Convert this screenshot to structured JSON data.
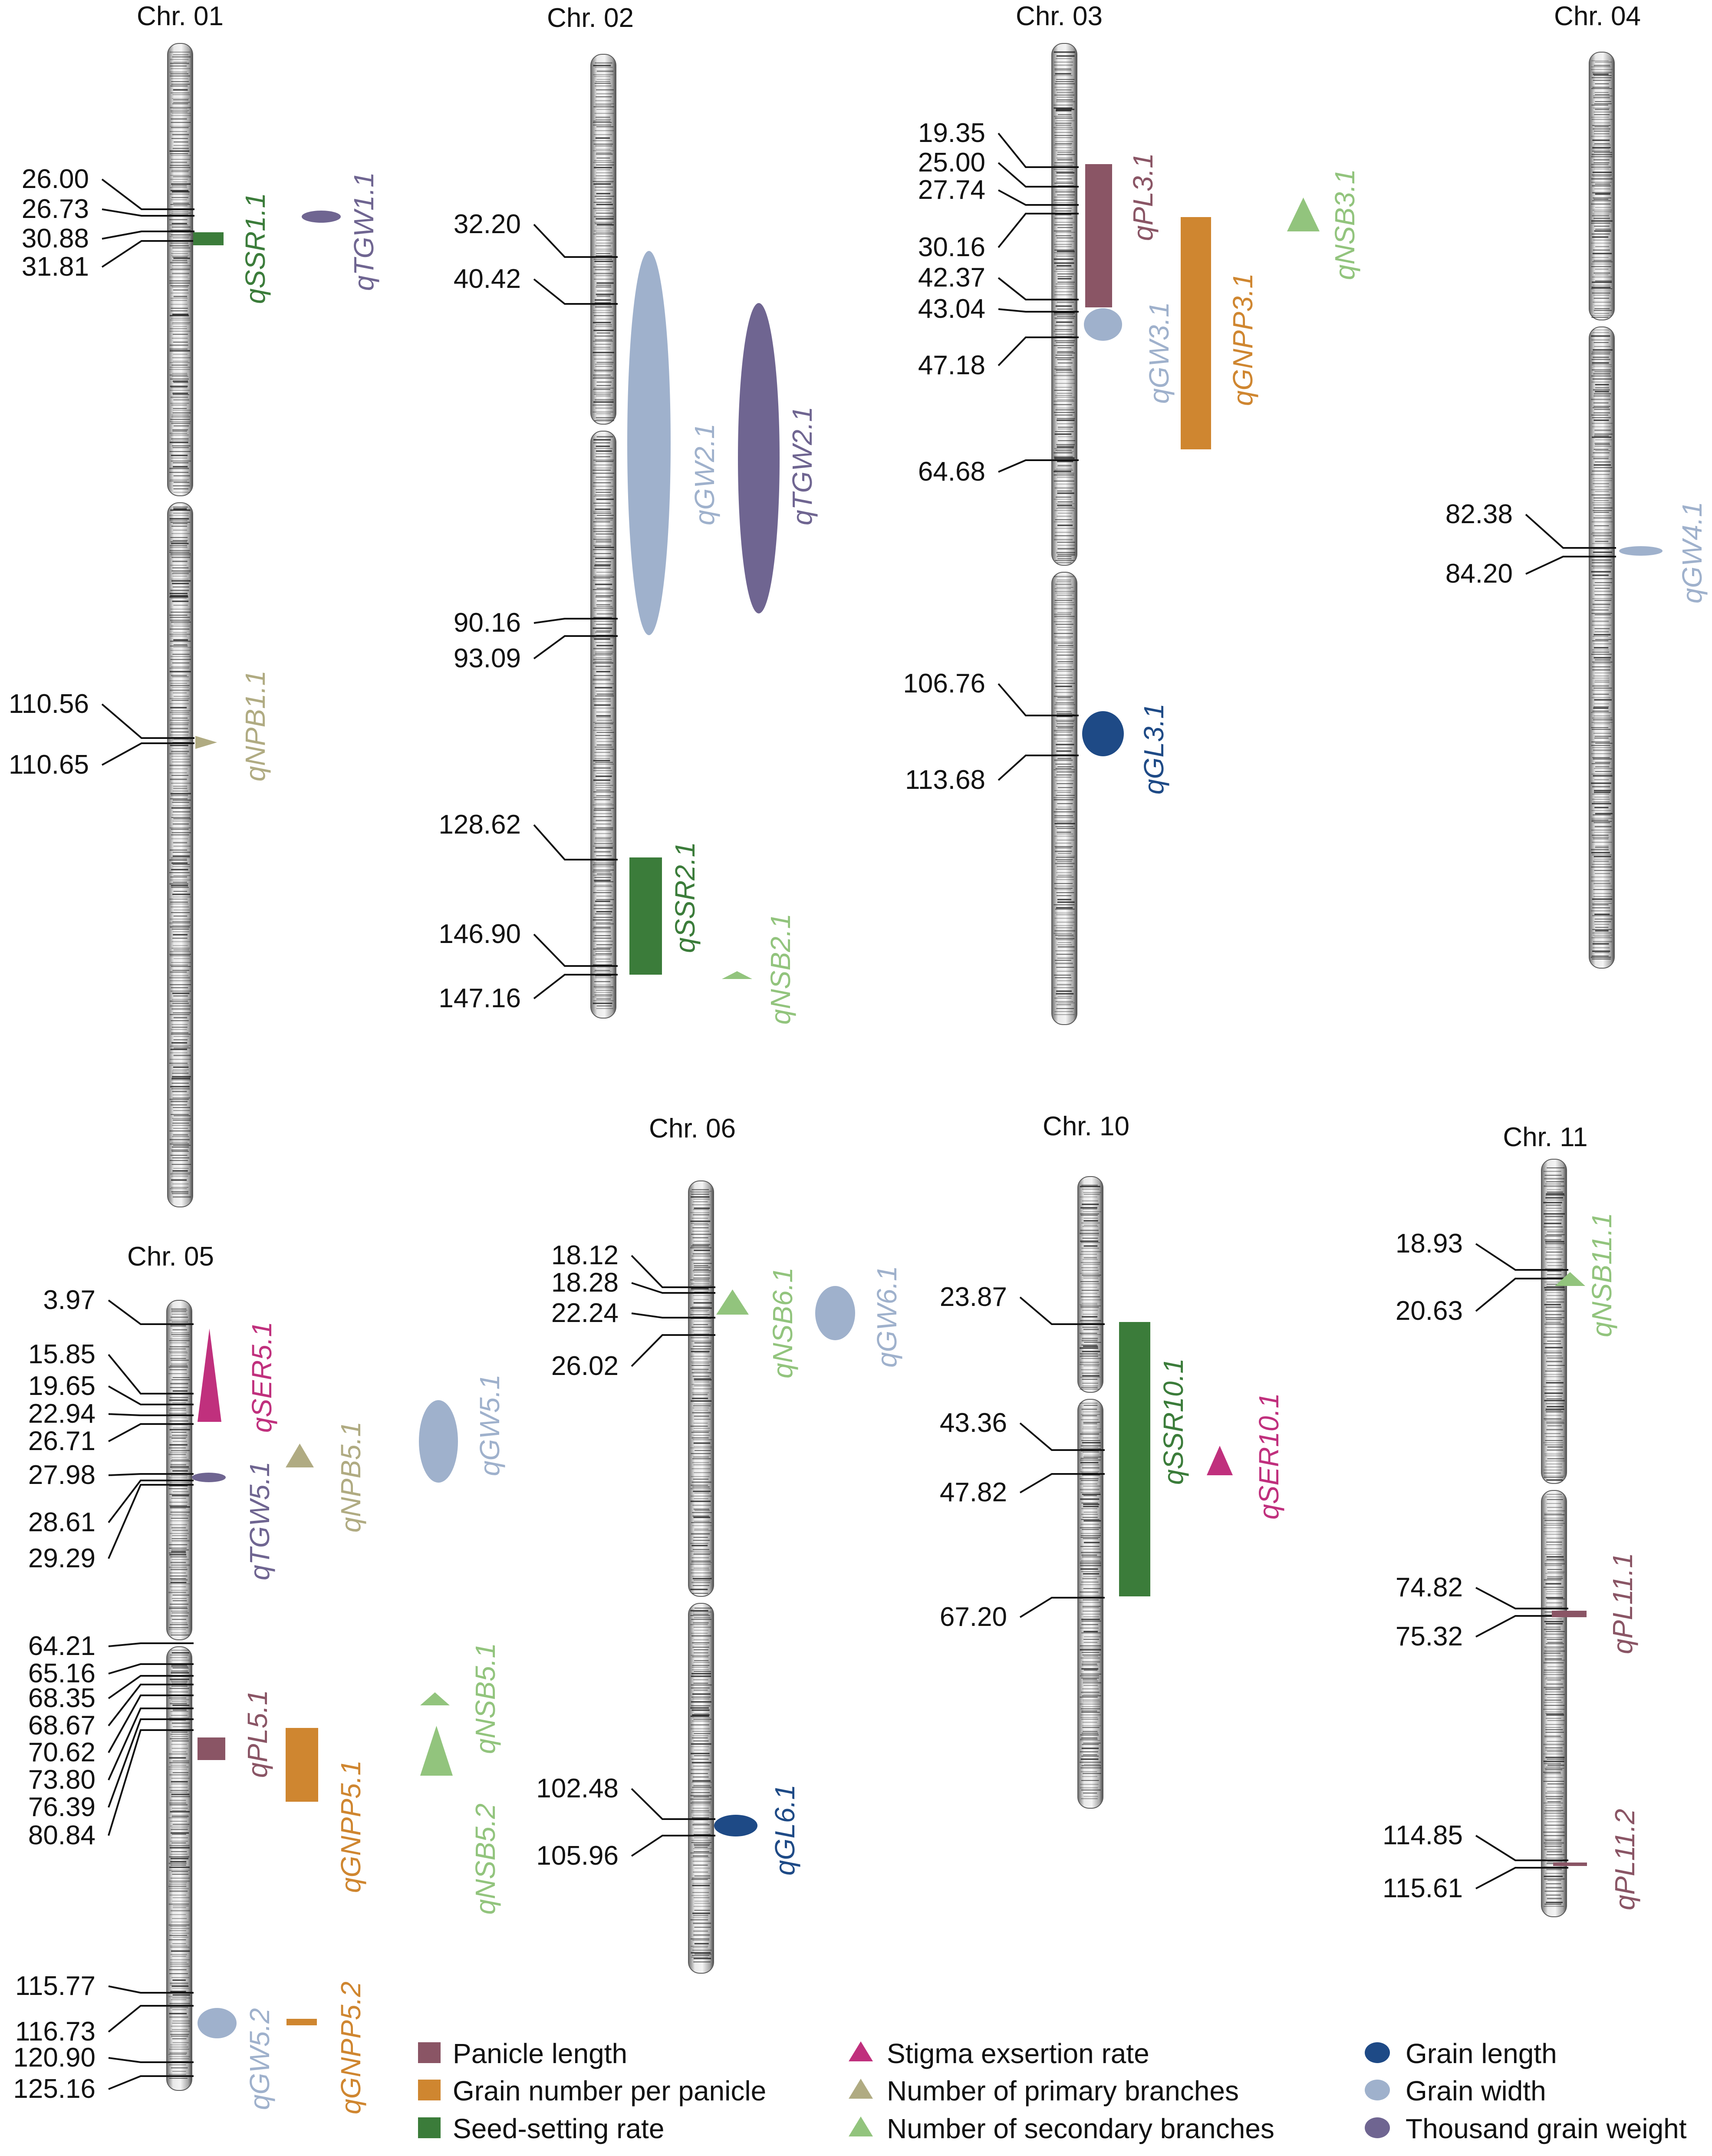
{
  "diagram_data": {
    "units": "cM",
    "colors": {
      "panicle_length": "#8a5565",
      "grain_number": "#cf8630",
      "seed_setting": "#3b7c3a",
      "stigma": "#c0307d",
      "primary_branches": "#b0ab82",
      "secondary_branches": "#92c47d",
      "grain_length": "#1e4a86",
      "grain_width": "#9fb1cc",
      "tgw": "#6f6591"
    },
    "chromosomes": [
      {
        "id": "chr01",
        "name": "Chr. 01",
        "positions": [
          "26.00",
          "26.73",
          "30.88",
          "31.81",
          "110.56",
          "110.65"
        ],
        "qtls": [
          {
            "id": "qSSR1.1",
            "label": "qSSR1.1",
            "trait": "seed_setting",
            "shape": "rect"
          },
          {
            "id": "qTGW1.1",
            "label": "qTGW1.1",
            "trait": "tgw",
            "shape": "ellipse"
          },
          {
            "id": "qNPB1.1",
            "label": "qNPB1.1",
            "trait": "primary_branches",
            "shape": "triangle"
          }
        ]
      },
      {
        "id": "chr02",
        "name": "Chr. 02",
        "positions": [
          "32.20",
          "40.42",
          "90.16",
          "93.09",
          "128.62",
          "146.90",
          "147.16"
        ],
        "qtls": [
          {
            "id": "qGW2.1",
            "label": "qGW2.1",
            "trait": "grain_width",
            "shape": "ellipse"
          },
          {
            "id": "qTGW2.1",
            "label": "qTGW2.1",
            "trait": "tgw",
            "shape": "ellipse"
          },
          {
            "id": "qSSR2.1",
            "label": "qSSR2.1",
            "trait": "seed_setting",
            "shape": "rect"
          },
          {
            "id": "qNSB2.1",
            "label": "qNSB2.1",
            "trait": "secondary_branches",
            "shape": "triangle"
          }
        ]
      },
      {
        "id": "chr03",
        "name": "Chr. 03",
        "positions": [
          "19.35",
          "25.00",
          "27.74",
          "30.16",
          "42.37",
          "43.04",
          "47.18",
          "64.68",
          "106.76",
          "113.68"
        ],
        "qtls": [
          {
            "id": "qPL3.1",
            "label": "qPL3.1",
            "trait": "panicle_length",
            "shape": "rect"
          },
          {
            "id": "qGNPP3.1",
            "label": "qGNPP3.1",
            "trait": "grain_number",
            "shape": "rect"
          },
          {
            "id": "qNSB3.1",
            "label": "qNSB3.1",
            "trait": "secondary_branches",
            "shape": "triangle"
          },
          {
            "id": "qGW3.1",
            "label": "qGW3.1",
            "trait": "grain_width",
            "shape": "ellipse"
          },
          {
            "id": "qGL3.1",
            "label": "qGL3.1",
            "trait": "grain_length",
            "shape": "ellipse"
          }
        ]
      },
      {
        "id": "chr04",
        "name": "Chr. 04",
        "positions": [
          "82.38",
          "84.20"
        ],
        "qtls": [
          {
            "id": "qGW4.1",
            "label": "qGW4.1",
            "trait": "grain_width",
            "shape": "ellipse"
          }
        ]
      },
      {
        "id": "chr05",
        "name": "Chr. 05",
        "positions": [
          "3.97",
          "15.85",
          "19.65",
          "22.94",
          "26.71",
          "27.98",
          "28.61",
          "29.29",
          "64.21",
          "65.16",
          "68.35",
          "68.67",
          "70.62",
          "73.80",
          "76.39",
          "80.84",
          "115.77",
          "116.73",
          "120.90",
          "125.16"
        ],
        "qtls": [
          {
            "id": "qSER5.1",
            "label": "qSER5.1",
            "trait": "stigma",
            "shape": "triangle"
          },
          {
            "id": "qNPB5.1",
            "label": "qNPB5.1",
            "trait": "primary_branches",
            "shape": "triangle"
          },
          {
            "id": "qGW5.1",
            "label": "qGW5.1",
            "trait": "grain_width",
            "shape": "ellipse"
          },
          {
            "id": "qTGW5.1",
            "label": "qTGW5.1",
            "trait": "tgw",
            "shape": "ellipse"
          },
          {
            "id": "qPL5.1",
            "label": "qPL5.1",
            "trait": "panicle_length",
            "shape": "rect"
          },
          {
            "id": "qGNPP5.1",
            "label": "qGNPP5.1",
            "trait": "grain_number",
            "shape": "rect"
          },
          {
            "id": "qNSB5.1",
            "label": "qNSB5.1",
            "trait": "secondary_branches",
            "shape": "triangle"
          },
          {
            "id": "qNSB5.2",
            "label": "qNSB5.2",
            "trait": "secondary_branches",
            "shape": "triangle"
          },
          {
            "id": "qGW5.2",
            "label": "qGW5.2",
            "trait": "grain_width",
            "shape": "ellipse"
          },
          {
            "id": "qGNPP5.2",
            "label": "qGNPP5.2",
            "trait": "grain_number",
            "shape": "rect"
          }
        ]
      },
      {
        "id": "chr06",
        "name": "Chr. 06",
        "positions": [
          "18.12",
          "18.28",
          "22.24",
          "26.02",
          "102.48",
          "105.96"
        ],
        "qtls": [
          {
            "id": "qNSB6.1",
            "label": "qNSB6.1",
            "trait": "secondary_branches",
            "shape": "triangle"
          },
          {
            "id": "qGW6.1",
            "label": "qGW6.1",
            "trait": "grain_width",
            "shape": "ellipse"
          },
          {
            "id": "qGL6.1",
            "label": "qGL6.1",
            "trait": "grain_length",
            "shape": "ellipse"
          }
        ]
      },
      {
        "id": "chr10",
        "name": "Chr. 10",
        "positions": [
          "23.87",
          "43.36",
          "47.82",
          "67.20"
        ],
        "qtls": [
          {
            "id": "qSSR10.1",
            "label": "qSSR10.1",
            "trait": "seed_setting",
            "shape": "rect"
          },
          {
            "id": "qSER10.1",
            "label": "qSER10.1",
            "trait": "stigma",
            "shape": "triangle"
          }
        ]
      },
      {
        "id": "chr11",
        "name": "Chr. 11",
        "positions": [
          "18.93",
          "20.63",
          "74.82",
          "75.32",
          "114.85",
          "115.61"
        ],
        "qtls": [
          {
            "id": "qNSB11.1",
            "label": "qNSB11.1",
            "trait": "secondary_branches",
            "shape": "triangle"
          },
          {
            "id": "qPL11.1",
            "label": "qPL11.1",
            "trait": "panicle_length",
            "shape": "rect"
          },
          {
            "id": "qPL11.2",
            "label": "qPL11.2",
            "trait": "panicle_length",
            "shape": "rect"
          }
        ]
      }
    ],
    "legend": [
      {
        "trait": "panicle_length",
        "shape": "rect",
        "label": "Panicle length"
      },
      {
        "trait": "grain_number",
        "shape": "rect",
        "label": "Grain number per panicle"
      },
      {
        "trait": "seed_setting",
        "shape": "rect",
        "label": "Seed-setting rate"
      },
      {
        "trait": "stigma",
        "shape": "triangle",
        "label": "Stigma exsertion rate"
      },
      {
        "trait": "primary_branches",
        "shape": "triangle",
        "label": "Number of primary branches"
      },
      {
        "trait": "secondary_branches",
        "shape": "triangle",
        "label": "Number of secondary branches"
      },
      {
        "trait": "grain_length",
        "shape": "ellipse",
        "label": "Grain length"
      },
      {
        "trait": "grain_width",
        "shape": "ellipse",
        "label": "Grain width"
      },
      {
        "trait": "tgw",
        "shape": "ellipse",
        "label": "Thousand grain weight"
      }
    ]
  }
}
